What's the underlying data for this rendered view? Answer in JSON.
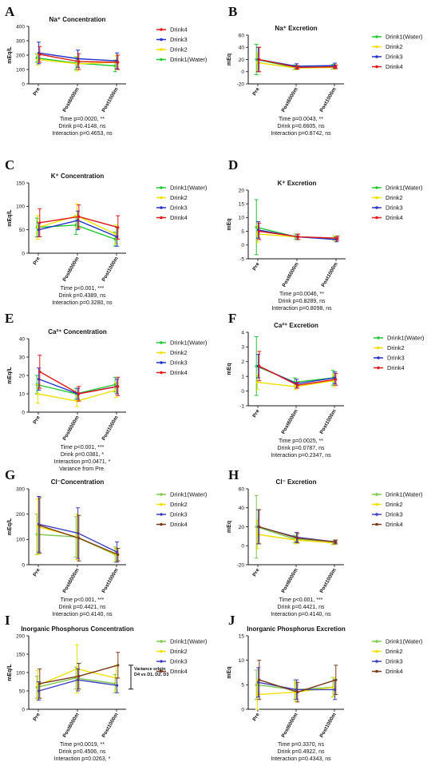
{
  "chart_data": [
    {
      "type": "line",
      "panel": "A",
      "title": "Na⁺ Concentration",
      "ylabel": "mEq/L",
      "x": [
        "Pre",
        "Post6000m",
        "Post1000m"
      ],
      "ylim": [
        0,
        400
      ],
      "yticks": [
        0,
        100,
        200,
        300,
        400
      ],
      "legend": [
        "Drink4",
        "Drink3",
        "Drink2",
        "Drink1(Water)"
      ],
      "series": [
        {
          "name": "Drink1(Water)",
          "color": "#22c832",
          "values": [
            180,
            145,
            125
          ],
          "err": [
            30,
            45,
            40
          ]
        },
        {
          "name": "Drink2",
          "color": "#f0e000",
          "values": [
            170,
            140,
            150
          ],
          "err": [
            40,
            50,
            45
          ]
        },
        {
          "name": "Drink3",
          "color": "#2233cc",
          "values": [
            215,
            175,
            160
          ],
          "err": [
            75,
            60,
            55
          ]
        },
        {
          "name": "Drink4",
          "color": "#e01818",
          "values": [
            205,
            155,
            150
          ],
          "err": [
            55,
            55,
            50
          ]
        }
      ],
      "stats": [
        "Time p=0.0020, **",
        "Drink p=0.4148, ns",
        "Interaction p=0.4653, ns"
      ]
    },
    {
      "type": "line",
      "panel": "B",
      "title": "Na⁺ Excretion",
      "ylabel": "mEq",
      "x": [
        "Pre",
        "Post6000m",
        "Post1000m"
      ],
      "ylim": [
        -20,
        60
      ],
      "yticks": [
        -20,
        0,
        20,
        40,
        60
      ],
      "legend": [
        "Drink1(Water)",
        "Drink2",
        "Drink3",
        "Drink4"
      ],
      "series": [
        {
          "name": "Drink1(Water)",
          "color": "#22c832",
          "values": [
            20,
            7,
            8
          ],
          "err": [
            25,
            4,
            4
          ]
        },
        {
          "name": "Drink2",
          "color": "#f0e000",
          "values": [
            15,
            6,
            7
          ],
          "err": [
            15,
            3,
            3
          ]
        },
        {
          "name": "Drink3",
          "color": "#2233cc",
          "values": [
            20,
            9,
            10
          ],
          "err": [
            20,
            4,
            4
          ]
        },
        {
          "name": "Drink4",
          "color": "#e01818",
          "values": [
            20,
            7,
            8
          ],
          "err": [
            20,
            3,
            3
          ]
        }
      ],
      "stats": [
        "Time p=0.0043, **",
        "Drink p=0.6605, ns",
        "Interaction p=0.8742, ns"
      ]
    },
    {
      "type": "line",
      "panel": "C",
      "title": "K⁺ Concentration",
      "ylabel": "mEq/L",
      "x": [
        "Pre",
        "Post6000m",
        "Post1000m"
      ],
      "ylim": [
        0,
        150
      ],
      "yticks": [
        0,
        50,
        100,
        150
      ],
      "legend": [
        "Drink1(Water)",
        "Drink2",
        "Drink3",
        "Drink4"
      ],
      "series": [
        {
          "name": "Drink1(Water)",
          "color": "#22c832",
          "values": [
            55,
            60,
            30
          ],
          "err": [
            20,
            20,
            15
          ]
        },
        {
          "name": "Drink2",
          "color": "#f0e000",
          "values": [
            55,
            80,
            40
          ],
          "err": [
            25,
            25,
            20
          ]
        },
        {
          "name": "Drink3",
          "color": "#2233cc",
          "values": [
            50,
            70,
            35
          ],
          "err": [
            15,
            20,
            20
          ]
        },
        {
          "name": "Drink4",
          "color": "#e01818",
          "values": [
            65,
            78,
            55
          ],
          "err": [
            30,
            25,
            25
          ]
        }
      ],
      "stats": [
        "Time p<0.001, ***",
        "Drink p=0.4389, ns",
        "Interaction p=0.3280, ns"
      ]
    },
    {
      "type": "line",
      "panel": "D",
      "title": "K⁺ Excretion",
      "ylabel": "mEq",
      "x": [
        "Pre",
        "Post6000m",
        "Post1000m"
      ],
      "ylim": [
        -5,
        20
      ],
      "yticks": [
        -5,
        0,
        5,
        10,
        15,
        20
      ],
      "legend": [
        "Drink1(Water)",
        "Drink2",
        "Drink3",
        "Drink4"
      ],
      "series": [
        {
          "name": "Drink1(Water)",
          "color": "#22c832",
          "values": [
            6.5,
            3,
            2.5
          ],
          "err": [
            10,
            1,
            0.8
          ]
        },
        {
          "name": "Drink2",
          "color": "#f0e000",
          "values": [
            4,
            3,
            2.5
          ],
          "err": [
            3,
            1,
            0.8
          ]
        },
        {
          "name": "Drink3",
          "color": "#2233cc",
          "values": [
            5.5,
            3,
            2
          ],
          "err": [
            3,
            1,
            0.8
          ]
        },
        {
          "name": "Drink4",
          "color": "#e01818",
          "values": [
            5,
            3,
            2.5
          ],
          "err": [
            3,
            1,
            0.8
          ]
        }
      ],
      "stats": [
        "Time p=0.0046, **",
        "Drink p=0.8289, ns",
        "Interaction p=0.8098, ns"
      ]
    },
    {
      "type": "line",
      "panel": "E",
      "title": "Ca²⁺ Concentration",
      "ylabel": "mEq/L",
      "x": [
        "Pre",
        "Post6000m",
        "Post1000m"
      ],
      "ylim": [
        0,
        40
      ],
      "yticks": [
        0,
        10,
        20,
        30,
        40
      ],
      "legend": [
        "Drink1(Water)",
        "Drink2",
        "Drink3",
        "Drink4"
      ],
      "series": [
        {
          "name": "Drink1(Water)",
          "color": "#22c832",
          "values": [
            15,
            10,
            15
          ],
          "err": [
            5,
            3,
            4
          ]
        },
        {
          "name": "Drink2",
          "color": "#f0e000",
          "values": [
            10,
            6,
            12
          ],
          "err": [
            5,
            3,
            4
          ]
        },
        {
          "name": "Drink3",
          "color": "#2233cc",
          "values": [
            18,
            10,
            14
          ],
          "err": [
            6,
            3,
            4
          ]
        },
        {
          "name": "Drink4",
          "color": "#e01818",
          "values": [
            22,
            10,
            14
          ],
          "err": [
            9,
            4,
            5
          ]
        }
      ],
      "stats": [
        "Time p<0.001, ***",
        "Drink p=0.0381, *",
        "Interaction p=0.0471, *",
        "Variance from Pre."
      ]
    },
    {
      "type": "line",
      "panel": "F",
      "title": "Ca²⁺ Excretion",
      "ylabel": "mEq",
      "x": [
        "Pre",
        "Post6000m",
        "Post1000m"
      ],
      "ylim": [
        -1,
        4
      ],
      "yticks": [
        -1,
        0,
        1,
        2,
        3,
        4
      ],
      "legend": [
        "Drink1(Water)",
        "Drink2",
        "Drink3",
        "Drink4"
      ],
      "series": [
        {
          "name": "Drink1(Water)",
          "color": "#22c832",
          "values": [
            1.7,
            0.6,
            0.9
          ],
          "err": [
            2,
            0.3,
            0.5
          ]
        },
        {
          "name": "Drink2",
          "color": "#f0e000",
          "values": [
            0.6,
            0.3,
            0.7
          ],
          "err": [
            0.5,
            0.2,
            0.4
          ]
        },
        {
          "name": "Drink3",
          "color": "#2233cc",
          "values": [
            1.7,
            0.5,
            0.9
          ],
          "err": [
            0.8,
            0.3,
            0.4
          ]
        },
        {
          "name": "Drink4",
          "color": "#e01818",
          "values": [
            1.7,
            0.4,
            0.8
          ],
          "err": [
            1,
            0.2,
            0.4
          ]
        }
      ],
      "stats": [
        "Time p=0.0025, **",
        "Drink p=0.0787, ns",
        "Interaction p=0.2347, ns"
      ]
    },
    {
      "type": "line",
      "panel": "G",
      "title": "Cl⁻Concentration",
      "ylabel": "mEq/L",
      "x": [
        "Pre",
        "Post6000m",
        "Post1000m"
      ],
      "ylim": [
        0,
        300
      ],
      "yticks": [
        0,
        100,
        200,
        300
      ],
      "legend": [
        "Drink1(Water)",
        "Drink2",
        "Drink3",
        "Drink4"
      ],
      "series": [
        {
          "name": "Drink1(Water)",
          "color": "#7ec850",
          "values": [
            120,
            110,
            40
          ],
          "err": [
            80,
            80,
            30
          ]
        },
        {
          "name": "Drink2",
          "color": "#f0e000",
          "values": [
            150,
            110,
            40
          ],
          "err": [
            110,
            90,
            25
          ]
        },
        {
          "name": "Drink3",
          "color": "#4040c0",
          "values": [
            160,
            125,
            50
          ],
          "err": [
            110,
            100,
            40
          ]
        },
        {
          "name": "Drink4",
          "color": "#7a3a1a",
          "values": [
            155,
            105,
            40
          ],
          "err": [
            110,
            90,
            25
          ]
        }
      ],
      "stats": [
        "Time p<0.001, ***",
        "Drink p=0.4421, ns",
        "Interaction p=0.4140, ns"
      ]
    },
    {
      "type": "line",
      "panel": "H",
      "title": "Cl⁻ Excretion",
      "ylabel": "mEq",
      "x": [
        "Pre",
        "Post6000m",
        "Post1000m"
      ],
      "ylim": [
        -20,
        60
      ],
      "yticks": [
        -20,
        0,
        20,
        40,
        60
      ],
      "legend": [
        "Drink1(Water)",
        "Drink2",
        "Drink3",
        "Drink4"
      ],
      "series": [
        {
          "name": "Drink1(Water)",
          "color": "#7ec850",
          "values": [
            20,
            7,
            3
          ],
          "err": [
            33,
            4,
            2
          ]
        },
        {
          "name": "Drink2",
          "color": "#f0e000",
          "values": [
            12,
            6,
            3
          ],
          "err": [
            15,
            4,
            2
          ]
        },
        {
          "name": "Drink3",
          "color": "#4040c0",
          "values": [
            20,
            9,
            4
          ],
          "err": [
            18,
            5,
            2
          ]
        },
        {
          "name": "Drink4",
          "color": "#7a3a1a",
          "values": [
            20,
            8,
            4
          ],
          "err": [
            18,
            5,
            2
          ]
        }
      ],
      "stats": [
        "Time p<0.001, ***",
        "Drink p=0.4421, ns",
        "Interaction p=0.4140, ns"
      ]
    },
    {
      "type": "line",
      "panel": "I",
      "title": "Inorganic Phosphorus Concentration",
      "ylabel": "mEq/L",
      "x": [
        "Pre",
        "Post6000m",
        "Post1000m"
      ],
      "ylim": [
        0,
        200
      ],
      "yticks": [
        0,
        50,
        100,
        150,
        200
      ],
      "legend": [
        "Drink1(Water)",
        "Drink2",
        "Drink3",
        "Drink4"
      ],
      "series": [
        {
          "name": "Drink1(Water)",
          "color": "#7ec850",
          "values": [
            60,
            85,
            70
          ],
          "err": [
            30,
            30,
            25
          ]
        },
        {
          "name": "Drink2",
          "color": "#f0e000",
          "values": [
            65,
            110,
            85
          ],
          "err": [
            40,
            65,
            35
          ]
        },
        {
          "name": "Drink3",
          "color": "#4040c0",
          "values": [
            50,
            80,
            65
          ],
          "err": [
            25,
            30,
            20
          ]
        },
        {
          "name": "Drink4",
          "color": "#7a3a1a",
          "values": [
            70,
            90,
            120
          ],
          "err": [
            40,
            35,
            35
          ]
        }
      ],
      "annotation": [
        "Variance origin",
        "D4 vs D1, D2, D3"
      ],
      "stats": [
        "Time p=0.0019, **",
        "Drink p=0.4506, ns",
        "Interaction p=0.0263, *"
      ]
    },
    {
      "type": "line",
      "panel": "J",
      "title": "Inorganic Phosphorus Excretion",
      "ylabel": "mEq",
      "x": [
        "Pre",
        "Post6000m",
        "Post1000m"
      ],
      "ylim": [
        0,
        15
      ],
      "yticks": [
        0,
        5,
        10,
        15
      ],
      "legend": [
        "Drink1(Water)",
        "Drink2",
        "Drink3",
        "Drink4"
      ],
      "series": [
        {
          "name": "Drink1(Water)",
          "color": "#7ec850",
          "values": [
            5,
            4,
            4.5
          ],
          "err": [
            3,
            2,
            2
          ]
        },
        {
          "name": "Drink2",
          "color": "#f0e000",
          "values": [
            3,
            3.5,
            4.5
          ],
          "err": [
            3,
            2,
            2
          ]
        },
        {
          "name": "Drink3",
          "color": "#4040c0",
          "values": [
            5.5,
            4,
            4
          ],
          "err": [
            3,
            2,
            2
          ]
        },
        {
          "name": "Drink4",
          "color": "#7a3a1a",
          "values": [
            6,
            3.5,
            6
          ],
          "err": [
            4,
            2,
            3
          ]
        }
      ],
      "stats": [
        "Time p=0.3370, ns",
        "Drink p=0.4922, ns",
        "Interaction p=0.4343, ns"
      ]
    }
  ]
}
